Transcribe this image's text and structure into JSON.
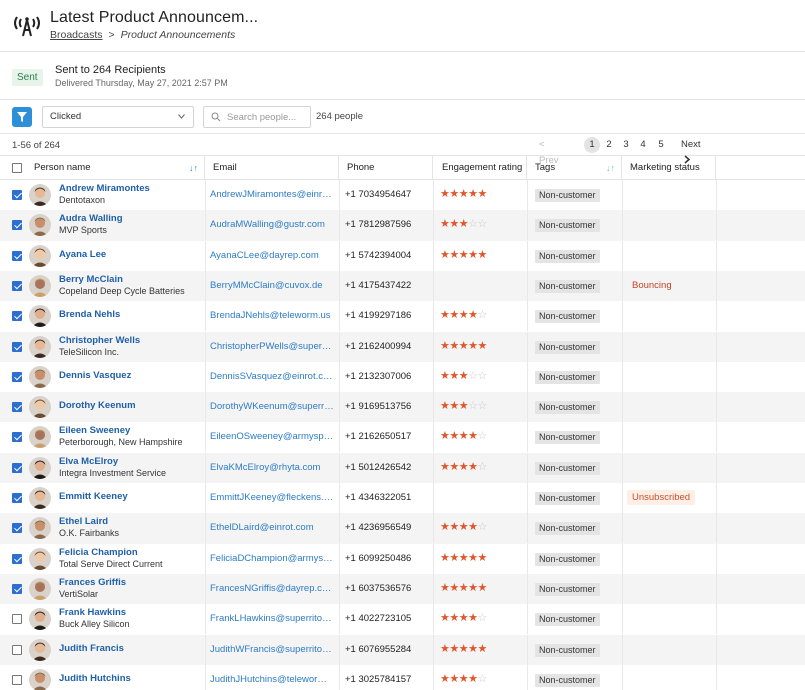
{
  "header": {
    "title": "Latest Product Announcem...",
    "breadcrumb_link": "Broadcasts",
    "breadcrumb_sep": ">",
    "breadcrumb_current": "Product Announcements"
  },
  "status": {
    "badge": "Sent",
    "main": "Sent to 264 Recipients",
    "sub": "Delivered Thursday, May 27, 2021 2:57 PM"
  },
  "toolbar": {
    "filter_value": "Clicked",
    "search_placeholder": "Search people...",
    "people_count": "264 people"
  },
  "pagination": {
    "range": "1-56 of 264",
    "prev": "< Prev",
    "pages": [
      "1",
      "2",
      "3",
      "4",
      "5"
    ],
    "active_page": "1",
    "next": "Next"
  },
  "columns": {
    "name": "Person name",
    "email": "Email",
    "phone": "Phone",
    "engagement": "Engagement rating",
    "tags": "Tags",
    "marketing": "Marketing status"
  },
  "colors": {
    "accent": "#2d8fd8",
    "link": "#1f5fa8",
    "star": "#e0562a",
    "sent_bg": "#e6f4ea",
    "bouncing": "#c84328"
  },
  "rows": [
    {
      "name": "Andrew Miramontes",
      "org": "Dentotaxon",
      "email": "AndrewJMiramontes@einrot...",
      "phone": "+1 7034954647",
      "stars": 5,
      "tag": "Non-customer",
      "status": "",
      "checked": true
    },
    {
      "name": "Audra Walling",
      "org": "MVP Sports",
      "email": "AudraMWalling@gustr.com",
      "phone": "+1 7812987596",
      "stars": 3,
      "tag": "Non-customer",
      "status": "",
      "checked": true
    },
    {
      "name": "Ayana Lee",
      "org": "",
      "email": "AyanaCLee@dayrep.com",
      "phone": "+1 5742394004",
      "stars": 5,
      "tag": "Non-customer",
      "status": "",
      "checked": true
    },
    {
      "name": "Berry McClain",
      "org": "Copeland Deep Cycle Batteries",
      "email": "BerryMMcClain@cuvox.de",
      "phone": "+1 4175437422",
      "stars": 0,
      "tag": "Non-customer",
      "status": "Bouncing",
      "status_style": "text",
      "checked": true
    },
    {
      "name": "Brenda Nehls",
      "org": "",
      "email": "BrendaJNehls@teleworm.us",
      "phone": "+1 4199297186",
      "stars": 4,
      "tag": "Non-customer",
      "status": "",
      "checked": true
    },
    {
      "name": "Christopher Wells",
      "org": "TeleSilicon Inc.",
      "email": "ChristopherPWells@superrit...",
      "phone": "+1 2162400994",
      "stars": 5,
      "tag": "Non-customer",
      "status": "",
      "checked": true
    },
    {
      "name": "Dennis Vasquez",
      "org": "",
      "email": "DennisSVasquez@einrot.com",
      "phone": "+1 2132307006",
      "stars": 3,
      "tag": "Non-customer",
      "status": "",
      "checked": true
    },
    {
      "name": "Dorothy Keenum",
      "org": "",
      "email": "DorothyWKeenum@superrit...",
      "phone": "+1 9169513756",
      "stars": 3,
      "tag": "Non-customer",
      "status": "",
      "checked": true
    },
    {
      "name": "Eileen Sweeney",
      "org": "Peterborough, New Hampshire",
      "email": "EileenOSweeney@armyspy.co...",
      "phone": "+1 2162650517",
      "stars": 4,
      "tag": "Non-customer",
      "status": "",
      "checked": true
    },
    {
      "name": "Elva McElroy",
      "org": "Integra Investment Service",
      "email": "ElvaKMcElroy@rhyta.com",
      "phone": "+1 5012426542",
      "stars": 4,
      "tag": "Non-customer",
      "status": "",
      "checked": true
    },
    {
      "name": "Emmitt Keeney",
      "org": "",
      "email": "EmmittJKeeney@fleckens.hu",
      "phone": "+1 4346322051",
      "stars": 0,
      "tag": "Non-customer",
      "status": "Unsubscribed",
      "status_style": "badge",
      "checked": true
    },
    {
      "name": "Ethel Laird",
      "org": "O.K. Fairbanks",
      "email": "EthelDLaird@einrot.com",
      "phone": "+1 4236956549",
      "stars": 4,
      "tag": "Non-customer",
      "status": "",
      "checked": true
    },
    {
      "name": "Felicia Champion",
      "org": "Total Serve Direct Current",
      "email": "FeliciaDChampion@armyspy...",
      "phone": "+1 6099250486",
      "stars": 5,
      "tag": "Non-customer",
      "status": "",
      "checked": true
    },
    {
      "name": "Frances Griffis",
      "org": "VertiSolar",
      "email": "FrancesNGriffis@dayrep.com",
      "phone": "+1 6037536576",
      "stars": 5,
      "tag": "Non-customer",
      "status": "",
      "checked": true
    },
    {
      "name": "Frank Hawkins",
      "org": "Buck Alley Silicon",
      "email": "FrankLHawkins@superrito.c...",
      "phone": "+1 4022723105",
      "stars": 4,
      "tag": "Non-customer",
      "status": "",
      "checked": false
    },
    {
      "name": "Judith Francis",
      "org": "",
      "email": "JudithWFrancis@superrito.c...",
      "phone": "+1 6076955284",
      "stars": 5,
      "tag": "Non-customer",
      "status": "",
      "checked": false
    },
    {
      "name": "Judith Hutchins",
      "org": "",
      "email": "JudithJHutchins@teleworm.us",
      "phone": "+1 3025784157",
      "stars": 4,
      "tag": "Non-customer",
      "status": "",
      "checked": false
    }
  ]
}
